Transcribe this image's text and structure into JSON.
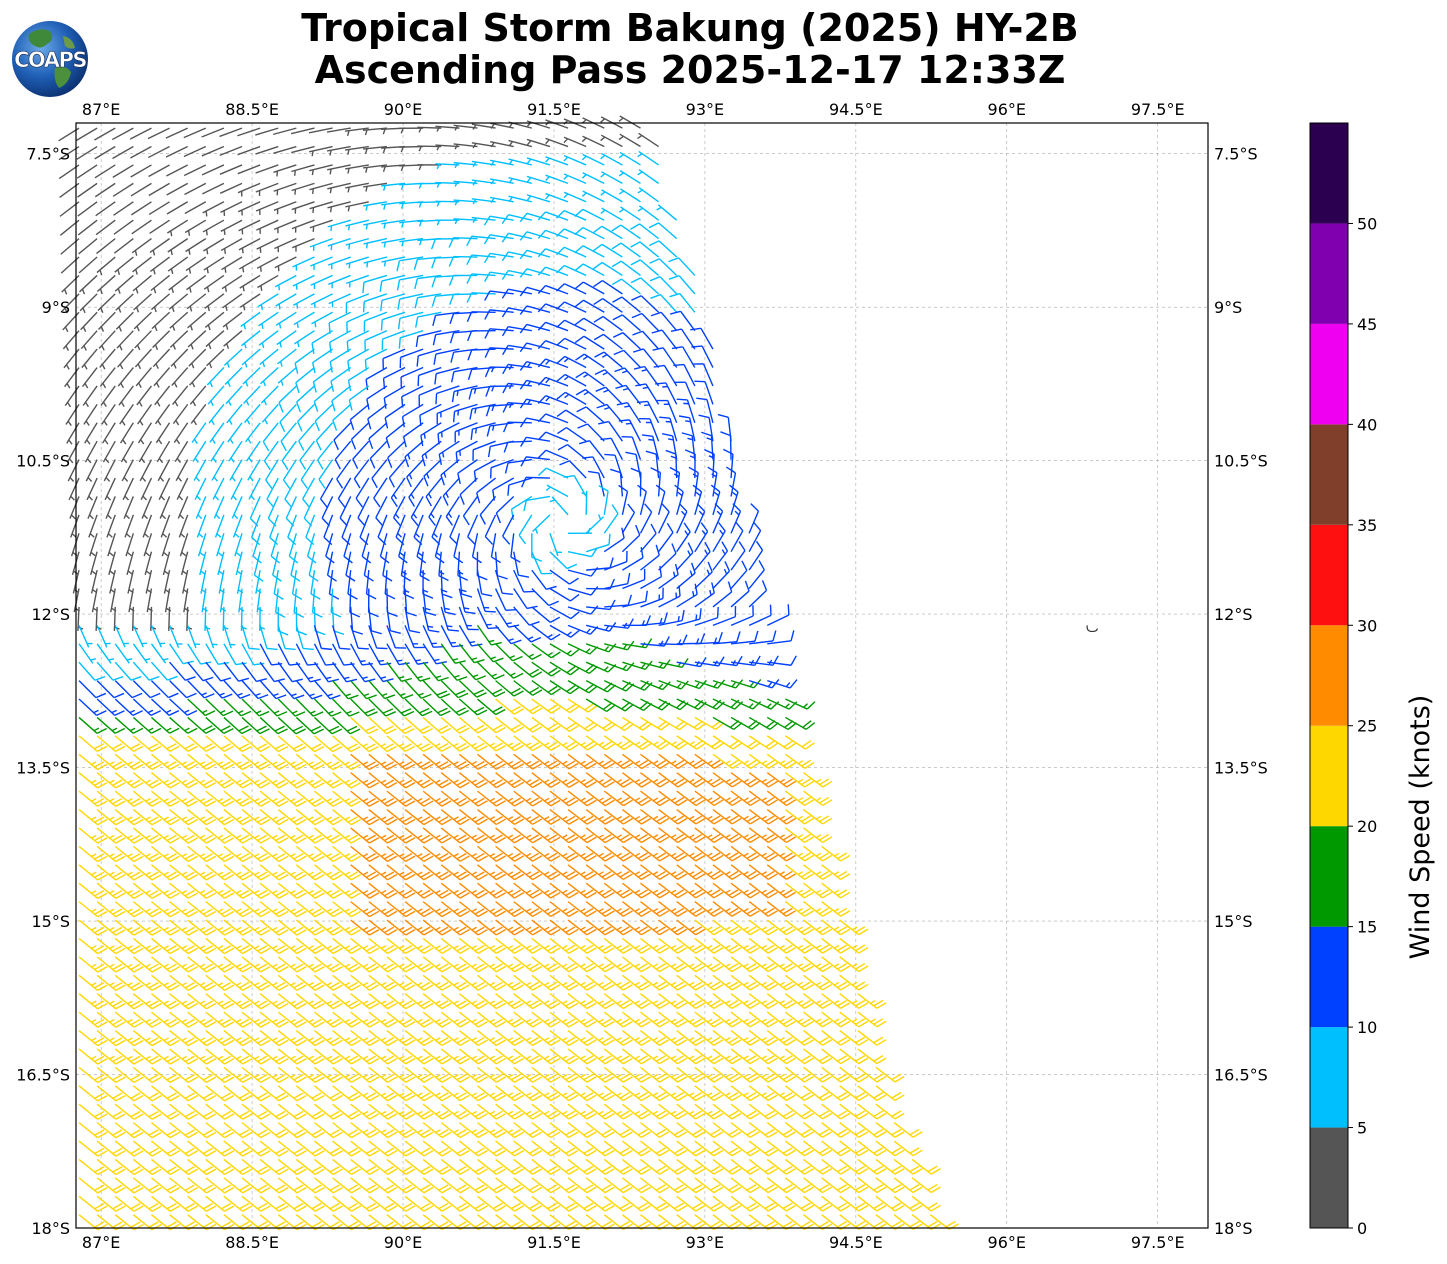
{
  "title": {
    "line1": "Tropical Storm Bakung (2025) HY-2B",
    "line2": "Ascending Pass 2025-12-17 12:33Z"
  },
  "logo": {
    "text": "COAPS",
    "icon": "globe-icon"
  },
  "map": {
    "lon_range": [
      86.75,
      98.0
    ],
    "lat_range": [
      -18.0,
      -7.2
    ],
    "lon_ticks": [
      {
        "value": 87.0,
        "label": "87°E"
      },
      {
        "value": 88.5,
        "label": "88.5°E"
      },
      {
        "value": 90.0,
        "label": "90°E"
      },
      {
        "value": 91.5,
        "label": "91.5°E"
      },
      {
        "value": 93.0,
        "label": "93°E"
      },
      {
        "value": 94.5,
        "label": "94.5°E"
      },
      {
        "value": 96.0,
        "label": "96°E"
      },
      {
        "value": 97.5,
        "label": "97.5°E"
      }
    ],
    "lat_ticks": [
      {
        "value": -7.5,
        "label": "7.5°S"
      },
      {
        "value": -9.0,
        "label": "9°S"
      },
      {
        "value": -10.5,
        "label": "10.5°S"
      },
      {
        "value": -12.0,
        "label": "12°S"
      },
      {
        "value": -13.5,
        "label": "13.5°S"
      },
      {
        "value": -15.0,
        "label": "15°S"
      },
      {
        "value": -16.5,
        "label": "16.5°S"
      },
      {
        "value": -18.0,
        "label": "18°S"
      }
    ],
    "gridlines": true,
    "storm_center": {
      "lon": 91.6,
      "lat": -11.1
    },
    "swath_east_edge": [
      {
        "lat": -7.2,
        "lon": 92.5
      },
      {
        "lat": -9.0,
        "lon": 93.0
      },
      {
        "lat": -11.0,
        "lon": 93.4
      },
      {
        "lat": -12.5,
        "lon": 93.75
      },
      {
        "lat": -14.0,
        "lon": 94.1
      },
      {
        "lat": -16.0,
        "lon": 94.6
      },
      {
        "lat": -18.0,
        "lon": 95.3
      }
    ],
    "island_marker": {
      "lon": 96.85,
      "lat": -12.15
    }
  },
  "colorbar": {
    "label": "Wind Speed (knots)",
    "bounds": [
      0,
      5,
      10,
      15,
      20,
      25,
      30,
      35,
      40,
      45,
      50,
      55
    ],
    "tick_labels": [
      "0",
      "5",
      "10",
      "15",
      "20",
      "25",
      "30",
      "35",
      "40",
      "45",
      "50"
    ],
    "colors": [
      "#555555",
      "#00bfff",
      "#0040ff",
      "#009900",
      "#ffd700",
      "#ff8c00",
      "#ff1010",
      "#7f3f2a",
      "#f000f0",
      "#8000b0",
      "#2b0050"
    ]
  }
}
